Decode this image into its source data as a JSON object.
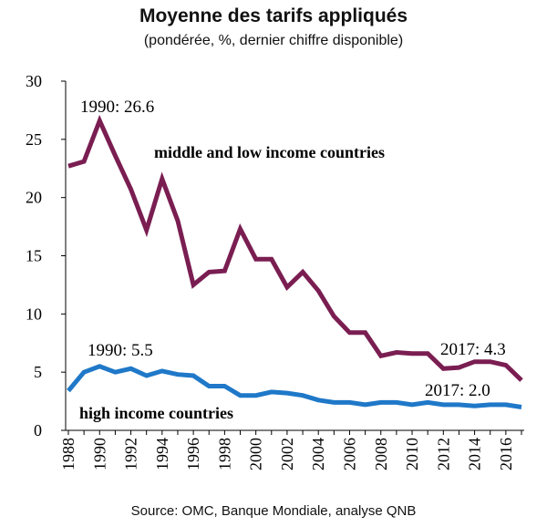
{
  "chart_data": {
    "type": "line",
    "title": "Moyenne des tarifs appliqués",
    "subtitle": "(pondérée, %, dernier chiffre disponible)",
    "source": "Source: OMC, Banque Mondiale, analyse QNB",
    "x": [
      1988,
      1989,
      1990,
      1991,
      1992,
      1993,
      1994,
      1995,
      1996,
      1997,
      1998,
      1999,
      2000,
      2001,
      2002,
      2003,
      2004,
      2005,
      2006,
      2007,
      2008,
      2009,
      2010,
      2011,
      2012,
      2013,
      2014,
      2015,
      2016,
      2017
    ],
    "x_tick_labels": [
      "1988",
      "1990",
      "1992",
      "1994",
      "1996",
      "1998",
      "2000",
      "2002",
      "2004",
      "2006",
      "2008",
      "2010",
      "2012",
      "2014",
      "2016"
    ],
    "y_tick_labels": [
      "0",
      "5",
      "10",
      "15",
      "20",
      "25",
      "30"
    ],
    "ylim": [
      0,
      30
    ],
    "xlim": [
      1988,
      2017
    ],
    "grid": false,
    "series": [
      {
        "name": "middle and low income countries",
        "color": "#7a1e52",
        "values": [
          22.7,
          23.1,
          26.6,
          23.6,
          20.7,
          17.2,
          21.6,
          18.0,
          12.5,
          13.6,
          13.7,
          17.3,
          14.7,
          14.7,
          12.3,
          13.6,
          12.0,
          9.8,
          8.4,
          8.4,
          6.4,
          6.7,
          6.6,
          6.6,
          5.3,
          5.4,
          5.9,
          5.9,
          5.6,
          4.3
        ]
      },
      {
        "name": "high income countries",
        "color": "#1f78c8",
        "values": [
          3.4,
          5.0,
          5.5,
          5.0,
          5.3,
          4.7,
          5.1,
          4.8,
          4.7,
          3.8,
          3.8,
          3.0,
          3.0,
          3.3,
          3.2,
          3.0,
          2.6,
          2.4,
          2.4,
          2.2,
          2.4,
          2.4,
          2.2,
          2.4,
          2.2,
          2.2,
          2.1,
          2.2,
          2.2,
          2.0
        ]
      }
    ],
    "annotations": {
      "mli_start": "1990: 26.6",
      "mli_end": "2017: 4.3",
      "hi_start": "1990: 5.5",
      "hi_end": "2017: 2.0"
    }
  }
}
